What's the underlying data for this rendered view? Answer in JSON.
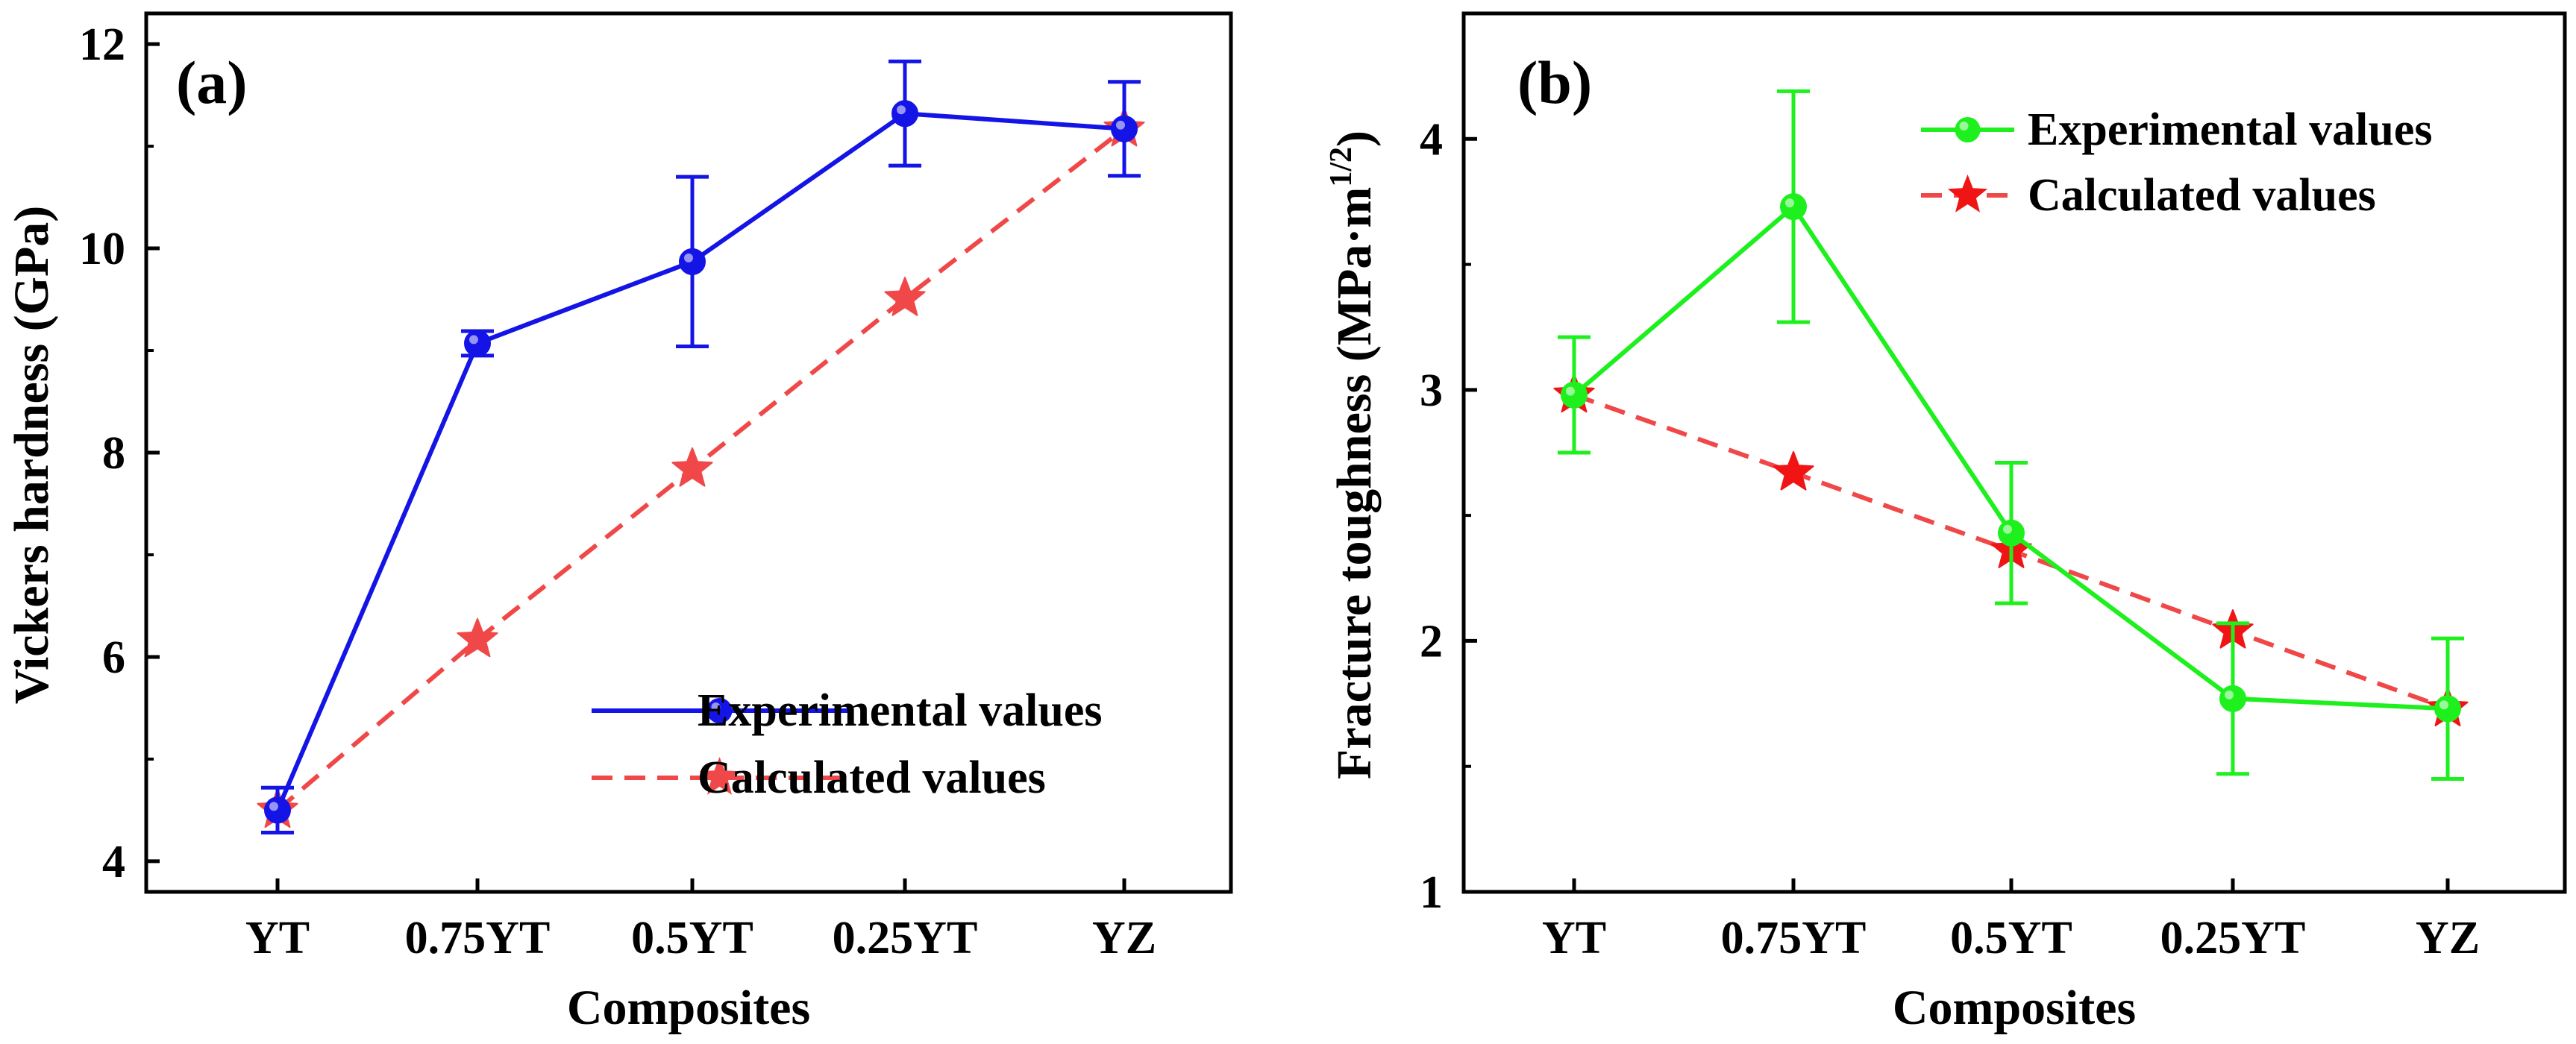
{
  "chart_data": [
    {
      "id": "a",
      "type": "line",
      "panel_label": "(a)",
      "xlabel": "Composites",
      "ylabel": "Vickers hardness (GPa)",
      "categories": [
        "YT",
        "0.75YT",
        "0.5YT",
        "0.25YT",
        "YZ"
      ],
      "ylim": [
        3.7,
        12.3
      ],
      "yticks": [
        4,
        6,
        8,
        10,
        12
      ],
      "yminor": [
        5,
        7,
        9,
        11
      ],
      "legend_position": "lower-right",
      "series": [
        {
          "name": "Experimental values",
          "values": [
            4.5,
            9.07,
            9.87,
            11.32,
            11.17
          ],
          "errors": [
            0.22,
            0.12,
            0.83,
            0.51,
            0.46
          ],
          "color": "#1414e6",
          "line_style": "solid",
          "marker": "circle"
        },
        {
          "name": "Calculated values",
          "values": [
            4.5,
            6.17,
            7.84,
            9.51,
            11.17
          ],
          "color": "#f04848",
          "star_color": "#f04848",
          "line_style": "dashed",
          "marker": "star"
        }
      ]
    },
    {
      "id": "b",
      "type": "line",
      "panel_label": "(b)",
      "xlabel": "Composites",
      "ylabel": "Fracture toughness (MPa·m",
      "ylabel_superscript": "1/2",
      "ylabel_close": ")",
      "categories": [
        "YT",
        "0.75YT",
        "0.5YT",
        "0.25YT",
        "YZ"
      ],
      "ylim": [
        1.0,
        4.5
      ],
      "yticks": [
        1,
        2,
        3,
        4
      ],
      "yminor": [
        1.5,
        2.5,
        3.5
      ],
      "legend_position": "top-right",
      "series": [
        {
          "name": "Experimental values",
          "values": [
            2.98,
            3.73,
            2.43,
            1.77,
            1.73
          ],
          "errors": [
            0.23,
            0.46,
            0.28,
            0.3,
            0.28
          ],
          "color": "#1ef01e",
          "line_style": "solid",
          "marker": "circle"
        },
        {
          "name": "Calculated values",
          "values": [
            2.98,
            2.67,
            2.36,
            2.04,
            1.73
          ],
          "color": "#f04848",
          "star_color": "#f01414",
          "line_style": "dashed",
          "marker": "star"
        }
      ]
    }
  ]
}
